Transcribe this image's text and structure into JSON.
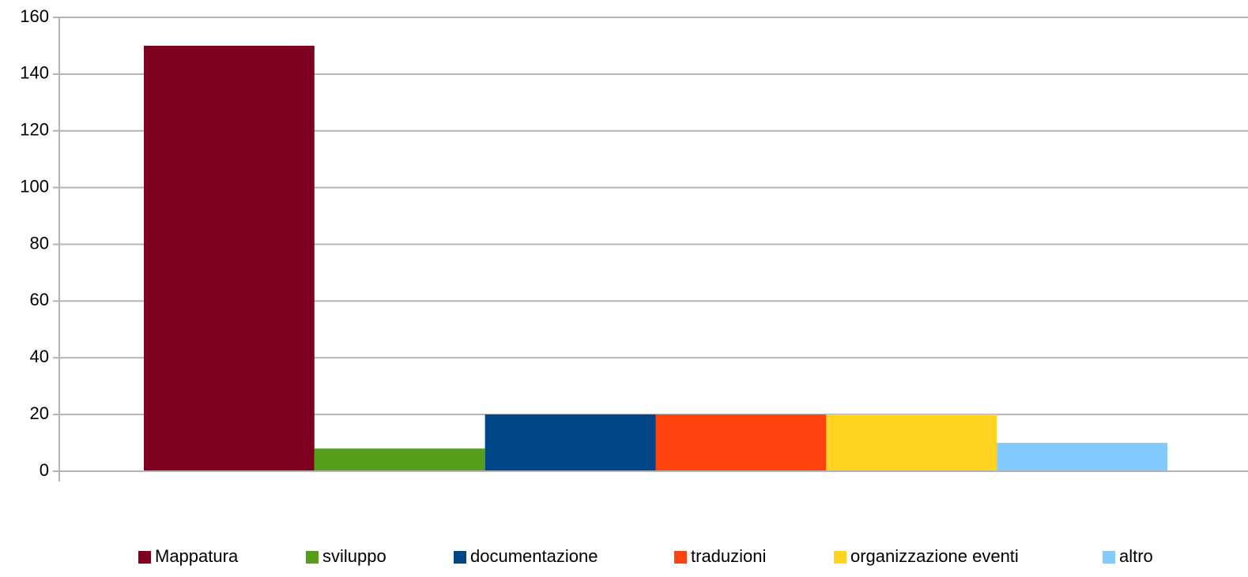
{
  "chart_data": {
    "type": "bar",
    "series": [
      {
        "name": "Mappatura",
        "color": "#7e0021",
        "values": [
          150
        ]
      },
      {
        "name": "sviluppo",
        "color": "#579d1c",
        "values": [
          8
        ]
      },
      {
        "name": "documentazione",
        "color": "#004586",
        "values": [
          20
        ]
      },
      {
        "name": "traduzioni",
        "color": "#ff420e",
        "values": [
          20
        ]
      },
      {
        "name": "organizzazione eventi",
        "color": "#ffd320",
        "values": [
          20
        ]
      },
      {
        "name": "altro",
        "color": "#83caff",
        "values": [
          10
        ]
      }
    ],
    "ylim": [
      0,
      160
    ],
    "yticks": [
      0,
      20,
      40,
      60,
      80,
      100,
      120,
      140,
      160
    ],
    "grid": true,
    "legend": "bottom"
  }
}
